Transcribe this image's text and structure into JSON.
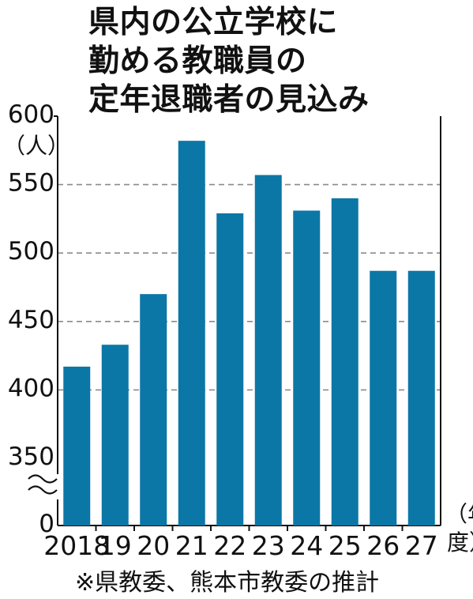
{
  "chart_data": {
    "type": "bar",
    "title": [
      "県内の公立学校に",
      "勤める教職員の",
      "定年退職者の見込み"
    ],
    "ylabel": "（人）",
    "xlabel_unit": [
      "（年",
      "度）"
    ],
    "categories": [
      "2018",
      "19",
      "20",
      "21",
      "22",
      "23",
      "24",
      "25",
      "26",
      "27"
    ],
    "values": [
      417,
      433,
      470,
      582,
      529,
      557,
      531,
      540,
      487,
      487
    ],
    "y_ticks": [
      0,
      350,
      400,
      450,
      500,
      550,
      600
    ],
    "ylim": [
      330,
      600
    ],
    "y_axis_break": "between 0 and 350",
    "grid": "dashed horizontal at 400–550",
    "bar_color": "#0b77a6",
    "source": "※県教委、熊本市教委の推計"
  }
}
